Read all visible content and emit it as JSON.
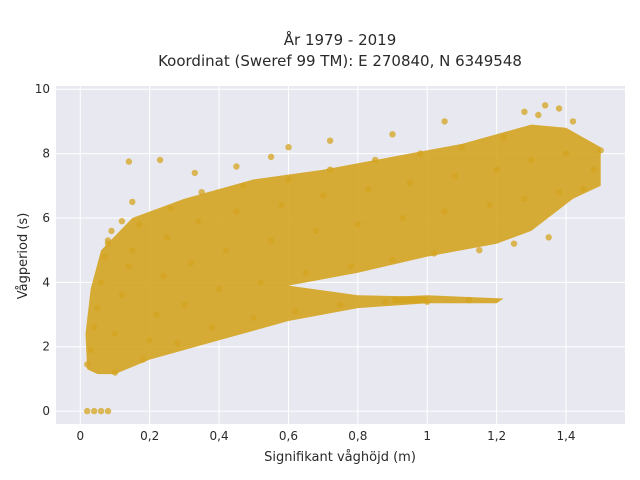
{
  "chart_data": {
    "type": "scatter",
    "title_lines": [
      "År 1979 - 2019",
      "Koordinat (Sweref 99 TM): E 270840, N 6349548"
    ],
    "xlabel": "Signifikant våghöjd (m)",
    "ylabel": "Vågperiod (s)",
    "xlim": [
      -0.07,
      1.57
    ],
    "ylim": [
      -0.4,
      10.1
    ],
    "x_ticks": [
      0,
      0.2,
      0.4,
      0.6,
      0.8,
      1.0,
      1.2,
      1.4
    ],
    "x_tick_labels": [
      "0",
      "0,2",
      "0,4",
      "0,6",
      "0,8",
      "1",
      "1,2",
      "1,4"
    ],
    "y_ticks": [
      0,
      2,
      4,
      6,
      8,
      10
    ],
    "y_tick_labels": [
      "0",
      "2",
      "4",
      "6",
      "8",
      "10"
    ],
    "grid": true,
    "marker_color": "#D4A420",
    "background_color": "#E8E8F0",
    "series": [
      {
        "points": [
          [
            0.02,
            1.45
          ],
          [
            0.03,
            1.9
          ],
          [
            0.04,
            2.6
          ],
          [
            0.05,
            3.2
          ],
          [
            0.06,
            4.0
          ],
          [
            0.07,
            4.8
          ],
          [
            0.08,
            5.3
          ],
          [
            0.09,
            5.6
          ],
          [
            0.1,
            1.2
          ],
          [
            0.1,
            2.4
          ],
          [
            0.12,
            3.6
          ],
          [
            0.14,
            4.5
          ],
          [
            0.15,
            5.0
          ],
          [
            0.17,
            5.8
          ],
          [
            0.18,
            1.6
          ],
          [
            0.2,
            2.2
          ],
          [
            0.22,
            3.0
          ],
          [
            0.24,
            4.2
          ],
          [
            0.25,
            5.4
          ],
          [
            0.26,
            6.3
          ],
          [
            0.28,
            2.1
          ],
          [
            0.3,
            3.3
          ],
          [
            0.32,
            4.6
          ],
          [
            0.34,
            5.9
          ],
          [
            0.35,
            6.8
          ],
          [
            0.38,
            2.6
          ],
          [
            0.4,
            3.8
          ],
          [
            0.42,
            5.0
          ],
          [
            0.45,
            6.2
          ],
          [
            0.47,
            7.0
          ],
          [
            0.5,
            2.9
          ],
          [
            0.52,
            4.0
          ],
          [
            0.55,
            5.3
          ],
          [
            0.58,
            6.4
          ],
          [
            0.6,
            7.2
          ],
          [
            0.62,
            3.1
          ],
          [
            0.65,
            4.3
          ],
          [
            0.68,
            5.6
          ],
          [
            0.7,
            6.7
          ],
          [
            0.72,
            7.5
          ],
          [
            0.75,
            3.3
          ],
          [
            0.78,
            4.5
          ],
          [
            0.8,
            5.8
          ],
          [
            0.83,
            6.9
          ],
          [
            0.85,
            7.8
          ],
          [
            0.88,
            3.4
          ],
          [
            0.9,
            4.7
          ],
          [
            0.93,
            6.0
          ],
          [
            0.95,
            7.1
          ],
          [
            0.98,
            8.0
          ],
          [
            1.0,
            3.4
          ],
          [
            1.02,
            4.9
          ],
          [
            1.05,
            6.2
          ],
          [
            1.08,
            7.3
          ],
          [
            1.1,
            8.2
          ],
          [
            1.12,
            3.45
          ],
          [
            1.15,
            5.0
          ],
          [
            1.18,
            6.4
          ],
          [
            1.2,
            7.5
          ],
          [
            1.22,
            8.5
          ],
          [
            1.25,
            5.2
          ],
          [
            1.28,
            6.6
          ],
          [
            1.3,
            7.8
          ],
          [
            1.32,
            9.2
          ],
          [
            1.35,
            5.4
          ],
          [
            1.38,
            6.8
          ],
          [
            1.4,
            8.0
          ],
          [
            1.42,
            9.0
          ],
          [
            1.45,
            6.9
          ],
          [
            1.48,
            7.5
          ],
          [
            1.5,
            8.1
          ],
          [
            1.05,
            9.0
          ],
          [
            0.9,
            8.6
          ],
          [
            0.72,
            8.4
          ],
          [
            0.6,
            8.2
          ],
          [
            0.23,
            7.8
          ],
          [
            0.14,
            7.75
          ],
          [
            0.04,
            0
          ],
          [
            0.06,
            0
          ],
          [
            0.08,
            0
          ],
          [
            0.02,
            0
          ],
          [
            0.33,
            7.4
          ],
          [
            0.45,
            7.6
          ],
          [
            0.55,
            7.9
          ],
          [
            0.15,
            6.5
          ],
          [
            0.08,
            5.2
          ],
          [
            0.12,
            5.9
          ],
          [
            1.34,
            9.5
          ],
          [
            1.28,
            9.3
          ],
          [
            1.38,
            9.4
          ]
        ]
      }
    ]
  }
}
